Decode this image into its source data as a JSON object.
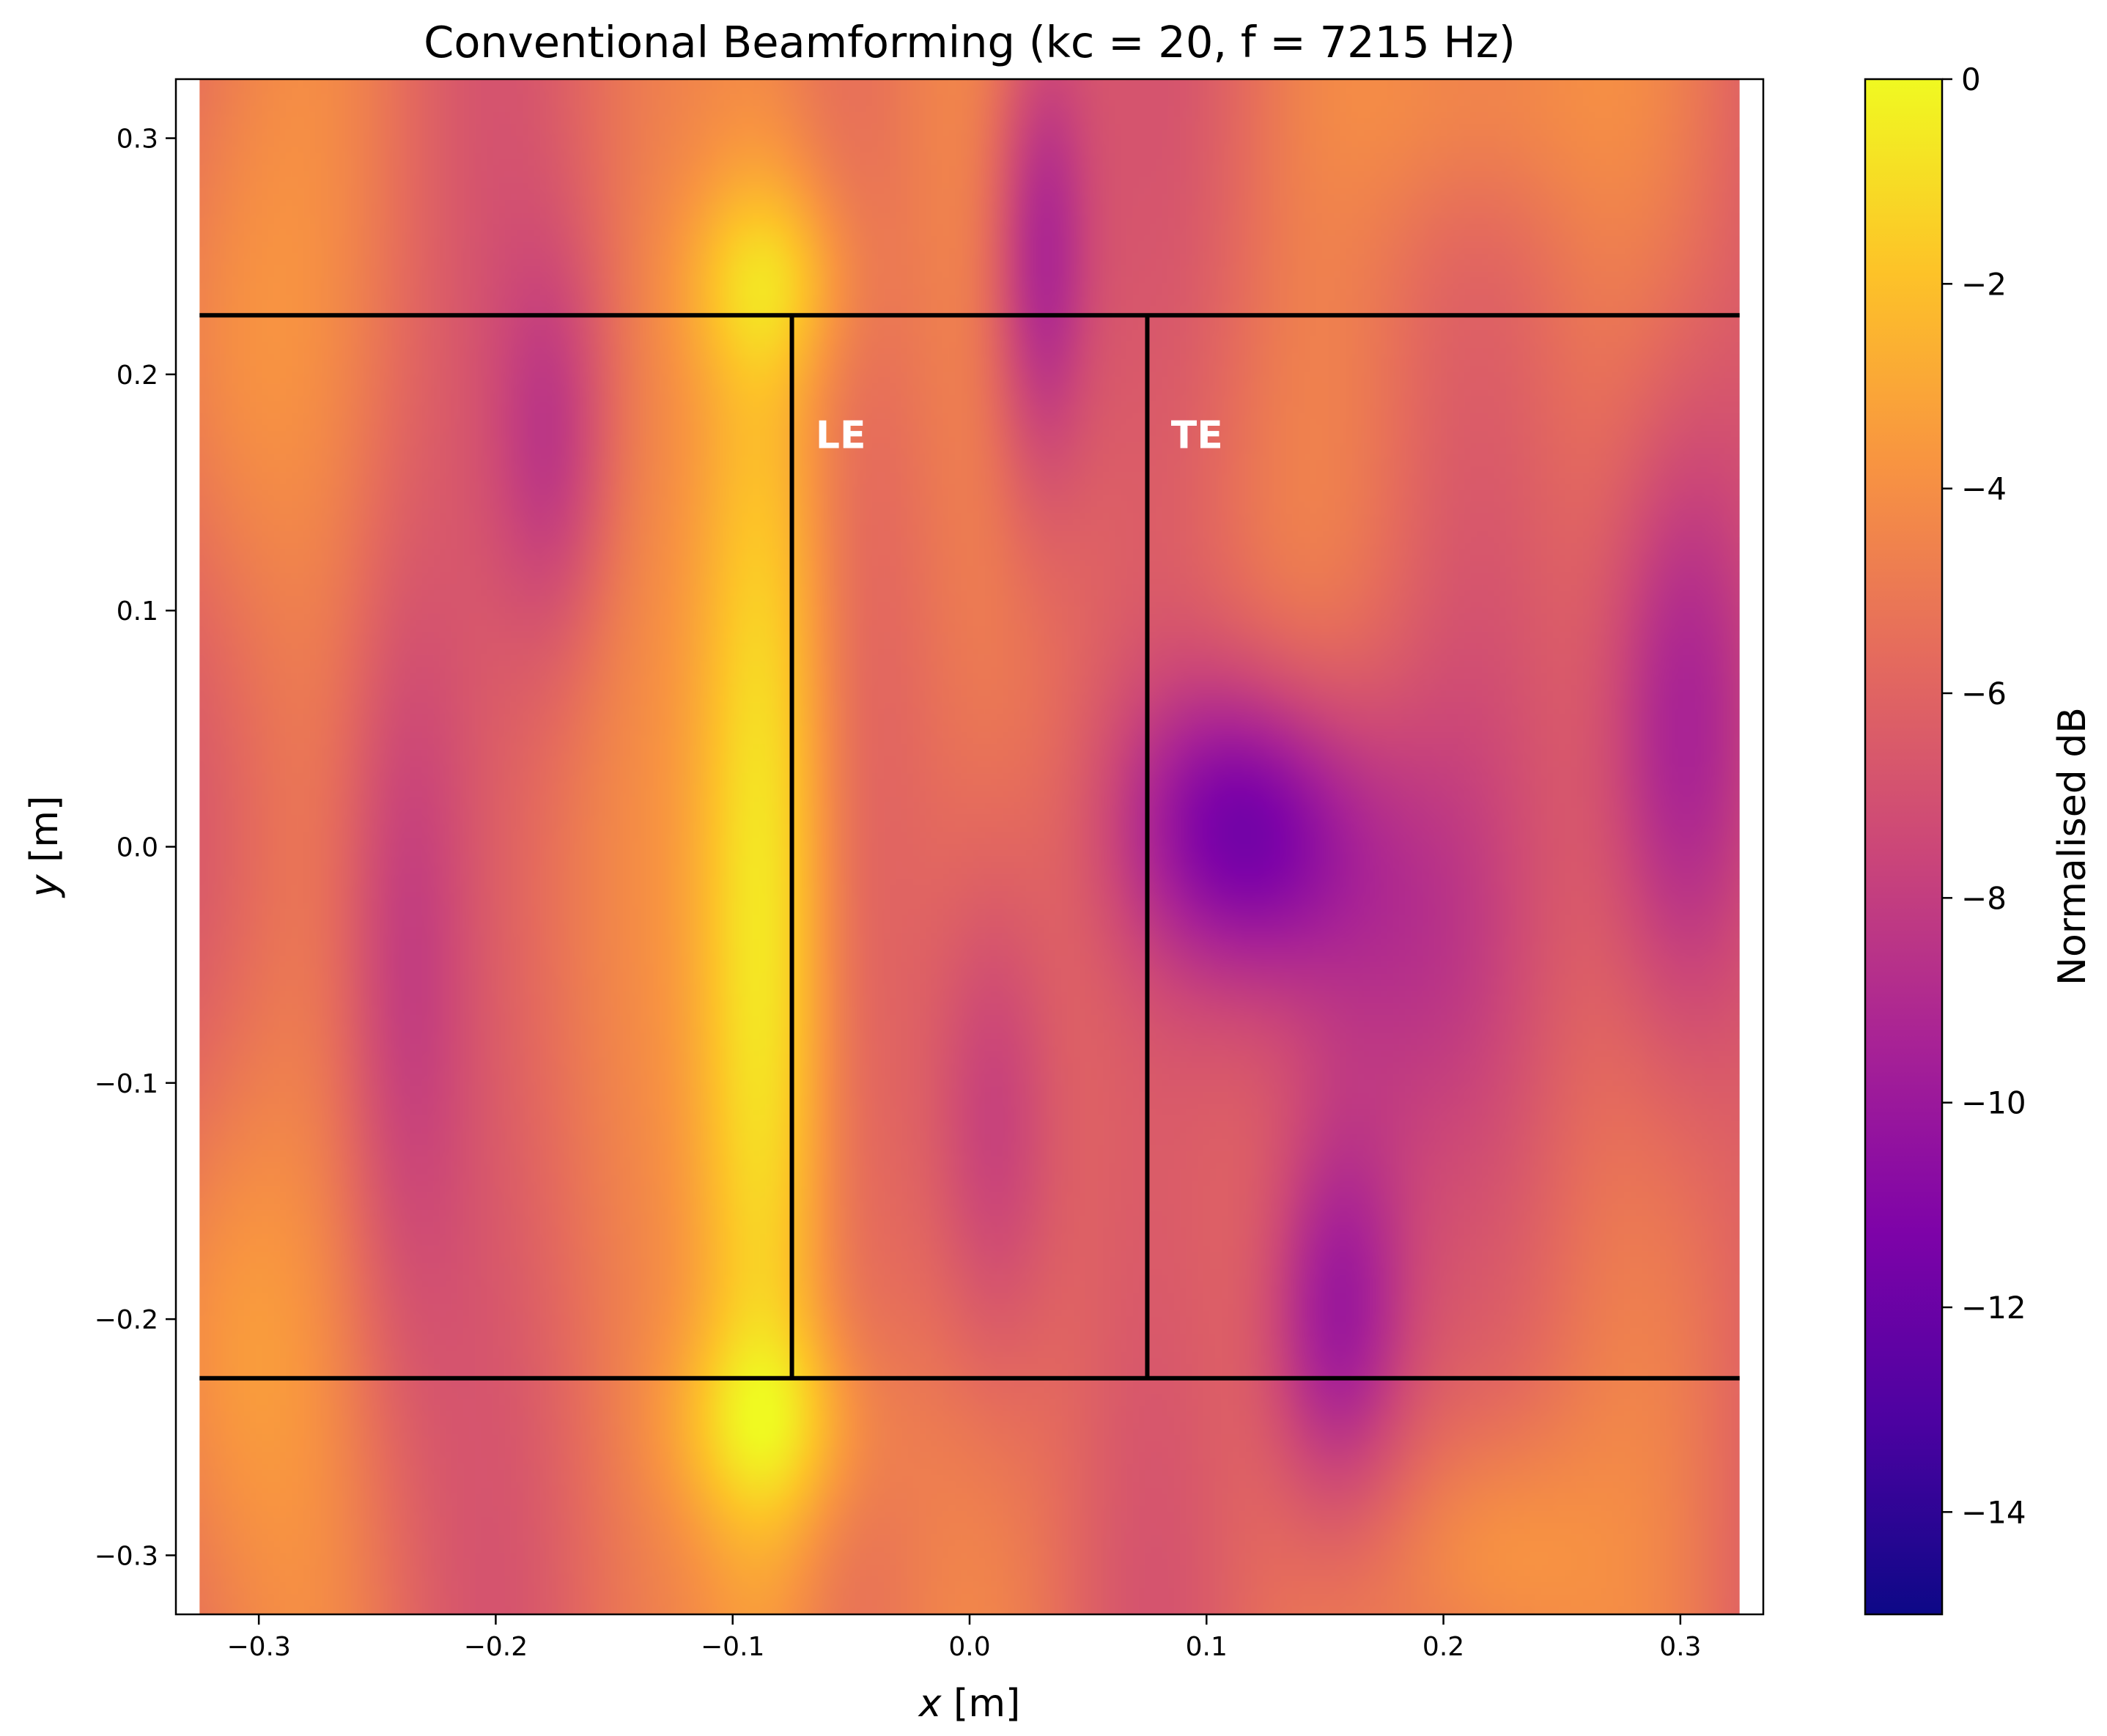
{
  "chart_data": {
    "type": "heatmap",
    "title": "Conventional Beamforming (kc = 20, f = 7215 Hz)",
    "xlabel_var": "x",
    "xlabel_unit": " [m]",
    "ylabel_var": "y",
    "ylabel_unit": " [m]",
    "colorbar_label": "Normalised dB",
    "colormap": "plasma",
    "xlim": [
      -0.335,
      0.335
    ],
    "ylim": [
      -0.325,
      0.325
    ],
    "extent": [
      -0.325,
      0.325,
      -0.325,
      0.325
    ],
    "clim": [
      -15,
      0
    ],
    "x_ticks": [
      -0.3,
      -0.2,
      -0.1,
      0.0,
      0.1,
      0.2,
      0.3
    ],
    "x_tick_labels": [
      "−0.3",
      "−0.2",
      "−0.1",
      "0.0",
      "0.1",
      "0.2",
      "0.3"
    ],
    "y_ticks": [
      0.3,
      0.2,
      0.1,
      0.0,
      -0.1,
      -0.2,
      -0.3
    ],
    "y_tick_labels": [
      "0.3",
      "0.2",
      "0.1",
      "0.0",
      "−0.1",
      "−0.2",
      "−0.3"
    ],
    "colorbar_ticks": [
      0,
      -2,
      -4,
      -6,
      -8,
      -10,
      -12,
      -14
    ],
    "colorbar_tick_labels": [
      "0",
      "−2",
      "−4",
      "−6",
      "−8",
      "−10",
      "−12",
      "−14"
    ],
    "background_level_db": -5.5,
    "sources": [
      {
        "x": -0.085,
        "y": -0.03,
        "sx": 0.022,
        "sy": 0.22,
        "amp_db": 5.5
      },
      {
        "x": -0.085,
        "y": 0.24,
        "sx": 0.025,
        "sy": 0.03,
        "amp_db": 2.5
      },
      {
        "x": -0.085,
        "y": -0.245,
        "sx": 0.03,
        "sy": 0.03,
        "amp_db": 2.5
      },
      {
        "x": 0.115,
        "y": 0.01,
        "sx": 0.035,
        "sy": 0.045,
        "amp_db": -5.5
      },
      {
        "x": 0.16,
        "y": -0.04,
        "sx": 0.04,
        "sy": 0.07,
        "amp_db": -3.0
      },
      {
        "x": 0.155,
        "y": -0.2,
        "sx": 0.022,
        "sy": 0.06,
        "amp_db": -5.0
      },
      {
        "x": 0.3,
        "y": 0.05,
        "sx": 0.025,
        "sy": 0.1,
        "amp_db": -4.5
      },
      {
        "x": 0.03,
        "y": 0.25,
        "sx": 0.015,
        "sy": 0.07,
        "amp_db": -4.0
      },
      {
        "x": -0.175,
        "y": 0.17,
        "sx": 0.018,
        "sy": 0.06,
        "amp_db": -2.5
      },
      {
        "x": -0.24,
        "y": -0.05,
        "sx": 0.02,
        "sy": 0.12,
        "amp_db": -2.5
      },
      {
        "x": 0.01,
        "y": -0.12,
        "sx": 0.02,
        "sy": 0.08,
        "amp_db": -3.0
      },
      {
        "x": -0.32,
        "y": -0.2,
        "sx": 0.03,
        "sy": 0.08,
        "amp_db": 2.0
      },
      {
        "x": -0.32,
        "y": 0.2,
        "sx": 0.03,
        "sy": 0.08,
        "amp_db": 1.5
      },
      {
        "x": 0.22,
        "y": -0.3,
        "sx": 0.03,
        "sy": 0.04,
        "amp_db": 2.0
      },
      {
        "x": 0.21,
        "y": 0.32,
        "sx": 0.04,
        "sy": 0.04,
        "amp_db": 1.5
      }
    ],
    "airfoil_outline": {
      "x_min": -0.325,
      "x_max": 0.325,
      "y_span": [
        -0.225,
        0.225
      ],
      "leading_edge_x": -0.075,
      "trailing_edge_x": 0.075
    },
    "annotations": [
      {
        "text": "LE",
        "x": -0.065,
        "y": 0.175
      },
      {
        "text": "TE",
        "x": 0.085,
        "y": 0.175
      }
    ]
  }
}
